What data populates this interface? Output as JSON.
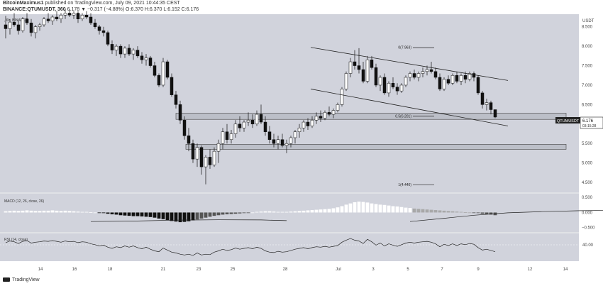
{
  "header": {
    "author": "BitcoinMaximus1",
    "published_text": " published on TradingView.com, July 09, 2021 10:44:35 CEST",
    "symbol": "BINANCE:QTUMUSDT, 360",
    "ohlc_text": " 6.178 ▼ −0.317 (−4.88%) O:6.370 H:6.370 L:6.152 C:6.176"
  },
  "chart_data": {
    "type": "candlestick",
    "title": "BINANCE:QTUMUSDT, 360",
    "watermark": ", 6h, BINANCE",
    "currency": "USDT",
    "y_ticks": [
      "8.500",
      "8.000",
      "7.500",
      "7.000",
      "6.500",
      "6.000",
      "5.500",
      "5.000",
      "4.500"
    ],
    "x_ticks": [
      "14",
      "16",
      "18",
      "21",
      "23",
      "25",
      "28",
      "Jul",
      "3",
      "5",
      "7",
      "9",
      "12",
      "14"
    ],
    "ylim": [
      4.3,
      8.75
    ],
    "price_label": "QTUMUSDT",
    "price_value": "6.176",
    "countdown": "03:15:28",
    "fib_levels": [
      {
        "label": "0(7.963)",
        "value": 7.963
      },
      {
        "label": "0.5(6.201)",
        "value": 6.201
      },
      {
        "label": "1(4.440)",
        "value": 4.44
      }
    ],
    "support_zones": [
      {
        "low": 6.12,
        "high": 6.28
      },
      {
        "low": 5.35,
        "high": 5.48
      }
    ],
    "channel": {
      "upper": [
        [
          "Jun 29",
          7.97
        ],
        [
          "Jul 10",
          7.12
        ]
      ],
      "lower": [
        [
          "Jun 29",
          6.9
        ],
        [
          "Jul 10",
          5.95
        ]
      ]
    },
    "candles": [
      [
        8.55,
        8.78,
        8.2,
        8.45
      ],
      [
        8.45,
        8.7,
        8.3,
        8.62
      ],
      [
        8.62,
        8.85,
        8.5,
        8.55
      ],
      [
        8.55,
        8.65,
        8.3,
        8.4
      ],
      [
        8.4,
        8.75,
        8.35,
        8.7
      ],
      [
        8.7,
        8.85,
        8.55,
        8.6
      ],
      [
        8.6,
        8.7,
        8.25,
        8.35
      ],
      [
        8.35,
        8.55,
        8.2,
        8.5
      ],
      [
        8.5,
        8.6,
        8.4,
        8.55
      ],
      [
        8.55,
        8.75,
        8.5,
        8.7
      ],
      [
        8.7,
        8.85,
        8.6,
        8.65
      ],
      [
        8.65,
        8.8,
        8.55,
        8.75
      ],
      [
        8.75,
        8.9,
        8.65,
        8.7
      ],
      [
        8.7,
        8.85,
        8.6,
        8.8
      ],
      [
        8.8,
        8.95,
        8.7,
        8.85
      ],
      [
        8.85,
        8.95,
        8.75,
        8.8
      ],
      [
        8.8,
        8.9,
        8.7,
        8.85
      ],
      [
        8.85,
        8.9,
        8.6,
        8.7
      ],
      [
        8.7,
        8.85,
        8.65,
        8.8
      ],
      [
        8.8,
        8.9,
        8.7,
        8.75
      ],
      [
        8.75,
        8.85,
        8.55,
        8.6
      ],
      [
        8.6,
        8.7,
        8.45,
        8.5
      ],
      [
        8.5,
        8.55,
        8.3,
        8.4
      ],
      [
        8.4,
        8.5,
        8.25,
        8.35
      ],
      [
        8.35,
        8.4,
        8.0,
        8.05
      ],
      [
        8.05,
        8.15,
        7.8,
        7.9
      ],
      [
        7.9,
        8.05,
        7.75,
        8.0
      ],
      [
        8.0,
        8.05,
        7.7,
        7.8
      ],
      [
        7.8,
        8.0,
        7.7,
        7.95
      ],
      [
        7.95,
        8.05,
        7.75,
        7.8
      ],
      [
        7.8,
        7.95,
        7.65,
        7.9
      ],
      [
        7.9,
        8.0,
        7.7,
        7.75
      ],
      [
        7.75,
        7.85,
        7.55,
        7.65
      ],
      [
        7.65,
        7.8,
        7.5,
        7.7
      ],
      [
        7.7,
        7.75,
        7.45,
        7.5
      ],
      [
        7.5,
        7.6,
        7.2,
        7.25
      ],
      [
        7.25,
        7.3,
        6.95,
        7.0
      ],
      [
        7.0,
        7.7,
        6.95,
        7.6
      ],
      [
        7.6,
        7.65,
        7.15,
        7.2
      ],
      [
        7.2,
        7.3,
        6.7,
        6.75
      ],
      [
        6.75,
        6.85,
        6.4,
        6.5
      ],
      [
        6.5,
        6.6,
        6.0,
        6.1
      ],
      [
        6.1,
        6.2,
        5.6,
        5.7
      ],
      [
        5.7,
        5.9,
        5.3,
        5.5
      ],
      [
        5.5,
        5.6,
        5.0,
        5.1
      ],
      [
        5.1,
        5.5,
        4.9,
        5.4
      ],
      [
        5.4,
        5.45,
        4.7,
        4.9
      ],
      [
        4.9,
        5.2,
        4.45,
        5.15
      ],
      [
        5.15,
        5.35,
        4.85,
        4.95
      ],
      [
        4.95,
        5.4,
        4.9,
        5.3
      ],
      [
        5.3,
        5.6,
        5.0,
        5.5
      ],
      [
        5.5,
        5.9,
        5.35,
        5.8
      ],
      [
        5.8,
        6.0,
        5.5,
        5.6
      ],
      [
        5.6,
        5.85,
        5.5,
        5.75
      ],
      [
        5.75,
        6.1,
        5.65,
        6.0
      ],
      [
        6.0,
        6.2,
        5.8,
        5.9
      ],
      [
        5.9,
        6.1,
        5.8,
        6.05
      ],
      [
        6.05,
        6.3,
        5.95,
        6.1
      ],
      [
        6.1,
        6.25,
        5.9,
        6.0
      ],
      [
        6.0,
        6.35,
        5.95,
        6.25
      ],
      [
        6.25,
        6.5,
        6.0,
        6.05
      ],
      [
        6.05,
        6.2,
        5.7,
        5.8
      ],
      [
        5.8,
        5.95,
        5.5,
        5.6
      ],
      [
        5.6,
        5.75,
        5.4,
        5.5
      ],
      [
        5.5,
        5.7,
        5.35,
        5.6
      ],
      [
        5.6,
        5.75,
        5.4,
        5.45
      ],
      [
        5.45,
        5.6,
        5.25,
        5.5
      ],
      [
        5.5,
        5.7,
        5.4,
        5.65
      ],
      [
        5.65,
        5.85,
        5.5,
        5.8
      ],
      [
        5.8,
        6.0,
        5.65,
        5.9
      ],
      [
        5.9,
        6.1,
        5.8,
        6.05
      ],
      [
        6.05,
        6.15,
        5.85,
        5.95
      ],
      [
        5.95,
        6.2,
        5.9,
        6.1
      ],
      [
        6.1,
        6.3,
        6.0,
        6.2
      ],
      [
        6.2,
        6.35,
        6.05,
        6.15
      ],
      [
        6.15,
        6.35,
        6.1,
        6.3
      ],
      [
        6.3,
        6.45,
        6.2,
        6.25
      ],
      [
        6.25,
        6.4,
        6.15,
        6.35
      ],
      [
        6.35,
        6.55,
        6.3,
        6.5
      ],
      [
        6.5,
        6.95,
        6.45,
        6.9
      ],
      [
        6.9,
        7.35,
        6.85,
        7.3
      ],
      [
        7.3,
        7.7,
        7.2,
        7.6
      ],
      [
        7.6,
        7.9,
        7.4,
        7.5
      ],
      [
        7.5,
        7.95,
        7.3,
        7.4
      ],
      [
        7.4,
        7.6,
        7.05,
        7.1
      ],
      [
        7.1,
        7.75,
        7.05,
        7.65
      ],
      [
        7.65,
        7.75,
        7.4,
        7.45
      ],
      [
        7.45,
        7.55,
        6.95,
        7.0
      ],
      [
        7.0,
        7.25,
        6.85,
        7.2
      ],
      [
        7.2,
        7.3,
        6.75,
        6.8
      ],
      [
        6.8,
        7.1,
        6.7,
        7.05
      ],
      [
        7.05,
        7.2,
        6.9,
        6.95
      ],
      [
        6.95,
        7.05,
        6.75,
        6.85
      ],
      [
        6.85,
        7.05,
        6.8,
        7.0
      ],
      [
        7.0,
        7.25,
        6.95,
        7.2
      ],
      [
        7.2,
        7.35,
        7.1,
        7.3
      ],
      [
        7.3,
        7.4,
        7.15,
        7.2
      ],
      [
        7.2,
        7.35,
        7.1,
        7.3
      ],
      [
        7.3,
        7.45,
        7.2,
        7.35
      ],
      [
        7.35,
        7.5,
        7.25,
        7.4
      ],
      [
        7.4,
        7.6,
        7.3,
        7.35
      ],
      [
        7.35,
        7.45,
        7.15,
        7.2
      ],
      [
        7.2,
        7.3,
        6.85,
        6.9
      ],
      [
        6.9,
        7.2,
        6.85,
        7.15
      ],
      [
        7.15,
        7.25,
        7.0,
        7.05
      ],
      [
        7.05,
        7.3,
        7.0,
        7.25
      ],
      [
        7.25,
        7.35,
        7.05,
        7.1
      ],
      [
        7.1,
        7.3,
        7.0,
        7.25
      ],
      [
        7.25,
        7.35,
        7.05,
        7.15
      ],
      [
        7.15,
        7.35,
        7.1,
        7.3
      ],
      [
        7.3,
        7.35,
        7.1,
        7.2
      ],
      [
        7.2,
        7.25,
        6.75,
        6.8
      ],
      [
        6.8,
        6.85,
        6.4,
        6.5
      ],
      [
        6.5,
        6.65,
        6.35,
        6.55
      ],
      [
        6.55,
        6.6,
        6.25,
        6.37
      ],
      [
        6.37,
        6.37,
        6.15,
        6.18
      ]
    ],
    "macd": {
      "label": "MACD (12, 26, close, 26)",
      "ticks": [
        "0.500",
        "0.000",
        "−0.500"
      ],
      "histogram": [
        0.04,
        0.05,
        0.06,
        0.05,
        0.06,
        0.07,
        0.06,
        0.05,
        0.05,
        0.06,
        0.06,
        0.07,
        0.06,
        0.05,
        0.06,
        0.05,
        0.04,
        0.03,
        0.02,
        0.02,
        0.01,
        0.0,
        -0.01,
        -0.02,
        -0.04,
        -0.06,
        -0.07,
        -0.09,
        -0.1,
        -0.11,
        -0.12,
        -0.12,
        -0.13,
        -0.14,
        -0.15,
        -0.17,
        -0.2,
        -0.22,
        -0.25,
        -0.28,
        -0.3,
        -0.32,
        -0.31,
        -0.29,
        -0.26,
        -0.23,
        -0.2,
        -0.17,
        -0.14,
        -0.11,
        -0.09,
        -0.07,
        -0.06,
        -0.05,
        -0.04,
        -0.03,
        -0.02,
        -0.01,
        0.0,
        0.02,
        0.03,
        0.04,
        0.04,
        0.03,
        0.02,
        0.02,
        0.02,
        0.03,
        0.04,
        0.05,
        0.06,
        0.07,
        0.08,
        0.09,
        0.1,
        0.11,
        0.12,
        0.14,
        0.17,
        0.21,
        0.26,
        0.3,
        0.34,
        0.36,
        0.35,
        0.33,
        0.3,
        0.28,
        0.26,
        0.25,
        0.23,
        0.21,
        0.2,
        0.18,
        0.16,
        0.15,
        0.13,
        0.12,
        0.11,
        0.1,
        0.09,
        0.08,
        0.07,
        0.06,
        0.05,
        0.04,
        0.03,
        0.02,
        0.01,
        0.0,
        -0.01,
        -0.02,
        -0.04,
        -0.06,
        -0.07,
        -0.09
      ],
      "signal": [
        [
          20,
          -0.5
        ],
        [
          30,
          -0.47
        ],
        [
          40,
          -0.42
        ],
        [
          50,
          -0.4
        ],
        [
          60,
          -0.41
        ],
        [
          66,
          -0.45
        ],
        [
          95,
          -0.5
        ],
        [
          103,
          -0.32
        ],
        [
          110,
          -0.15
        ],
        [
          118,
          -0.02
        ],
        [
          126,
          0.05
        ],
        [
          135,
          0.1
        ],
        [
          143,
          0.12
        ],
        [
          150,
          0.1
        ],
        [
          158,
          0.07
        ],
        [
          165,
          0.03
        ],
        [
          170,
          0.0
        ]
      ]
    },
    "rsi": {
      "label": "RSI (14, close)",
      "tick": "40.00",
      "values": [
        58,
        62,
        60,
        56,
        61,
        63,
        57,
        59,
        60,
        62,
        61,
        63,
        61,
        59,
        62,
        60,
        61,
        58,
        60,
        59,
        55,
        53,
        50,
        52,
        47,
        44,
        48,
        46,
        50,
        47,
        50,
        46,
        43,
        47,
        42,
        38,
        36,
        45,
        40,
        35,
        33,
        30,
        28,
        30,
        27,
        33,
        28,
        30,
        29,
        35,
        38,
        42,
        39,
        41,
        45,
        42,
        44,
        46,
        43,
        47,
        44,
        38,
        35,
        34,
        37,
        35,
        36,
        39,
        42,
        44,
        46,
        43,
        46,
        48,
        47,
        49,
        47,
        49,
        51,
        59,
        64,
        68,
        64,
        62,
        56,
        66,
        60,
        52,
        57,
        50,
        55,
        52,
        49,
        53,
        57,
        59,
        57,
        59,
        60,
        61,
        59,
        55,
        48,
        54,
        51,
        55,
        51,
        55,
        53,
        56,
        54,
        46,
        40,
        42,
        39,
        36
      ]
    }
  },
  "footer": {
    "logo_text": "TradingView"
  }
}
